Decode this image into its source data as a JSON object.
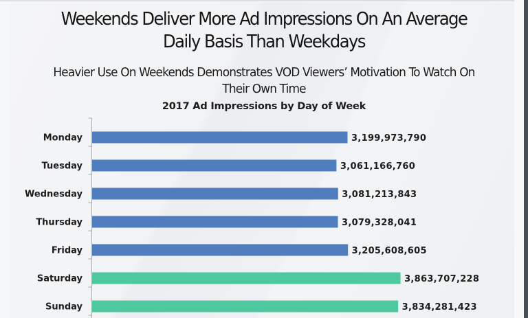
{
  "slide": {
    "title_line1": "Weekends Deliver More Ad Impressions On An Average",
    "title_line2": "Daily Basis Than Weekdays",
    "subtitle_line1": "Heavier Use On Weekends Demonstrates VOD Viewers’ Motivation To Watch On",
    "subtitle_line2": "Their Own Time"
  },
  "colors": {
    "weekday_bar": "#4f7dbd",
    "weekend_bar": "#4ec89f",
    "axis": "#a9abae",
    "text": "#1c1c1c"
  },
  "chart_data": {
    "type": "bar",
    "orientation": "horizontal",
    "title": "2017 Ad Impressions by Day of Week",
    "xlabel": "",
    "ylabel": "",
    "categories": [
      "Monday",
      "Tuesday",
      "Wednesday",
      "Thursday",
      "Friday",
      "Saturday",
      "Sunday"
    ],
    "values": [
      3199973790,
      3061166760,
      3081213843,
      3079328041,
      3205608605,
      3863707228,
      3834281423
    ],
    "value_labels": [
      "3,199,973,790",
      "3,061,166,760",
      "3,081,213,843",
      "3,079,328,041",
      "3,205,608,605",
      "3,863,707,228",
      "3,834,281,423"
    ],
    "groups": [
      "weekday",
      "weekday",
      "weekday",
      "weekday",
      "weekday",
      "weekend",
      "weekend"
    ],
    "xlim": [
      0,
      4500000000
    ],
    "grid": false,
    "legend": "none",
    "value_axis_visible": false
  }
}
